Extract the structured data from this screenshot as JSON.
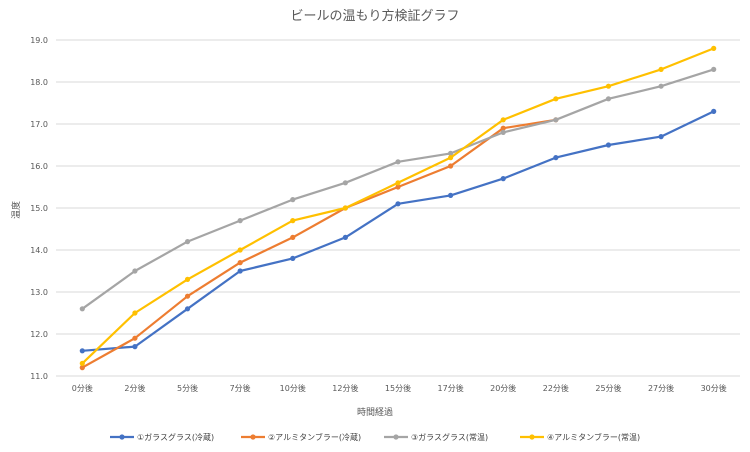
{
  "chart_data": {
    "type": "line",
    "title": "ビールの温もり方検証グラフ",
    "xlabel": "時間経過",
    "ylabel": "温度",
    "categories": [
      "0分後",
      "2分後",
      "5分後",
      "7分後",
      "10分後",
      "12分後",
      "15分後",
      "17分後",
      "20分後",
      "22分後",
      "25分後",
      "27分後",
      "30分後"
    ],
    "yticks": [
      "11.0",
      "12.0",
      "13.0",
      "14.0",
      "15.0",
      "16.0",
      "17.0",
      "18.0",
      "19.0"
    ],
    "ylim": [
      11,
      19
    ],
    "grid": true,
    "legend_position": "bottom",
    "series": [
      {
        "name": "①ガラスグラス(冷蔵)",
        "color": "#4472C4",
        "values": [
          11.6,
          11.7,
          12.6,
          13.5,
          13.8,
          14.3,
          15.1,
          15.3,
          15.7,
          16.2,
          16.5,
          16.7,
          17.3
        ]
      },
      {
        "name": "②アルミタンブラー(冷蔵)",
        "color": "#ED7D31",
        "values": [
          11.2,
          11.9,
          12.9,
          13.7,
          14.3,
          15.0,
          15.5,
          16.0,
          16.9,
          17.1,
          null,
          null,
          null
        ]
      },
      {
        "name": "③ガラスグラス(常温)",
        "color": "#A5A5A5",
        "values": [
          12.6,
          13.5,
          14.2,
          14.7,
          15.2,
          15.6,
          16.1,
          16.3,
          16.8,
          17.1,
          17.6,
          17.9,
          18.3
        ]
      },
      {
        "name": "④アルミタンブラー(常温)",
        "color": "#FFC000",
        "values": [
          11.3,
          12.5,
          13.3,
          14.0,
          14.7,
          15.0,
          15.6,
          16.2,
          17.1,
          17.6,
          17.9,
          18.3,
          18.8
        ]
      }
    ]
  }
}
